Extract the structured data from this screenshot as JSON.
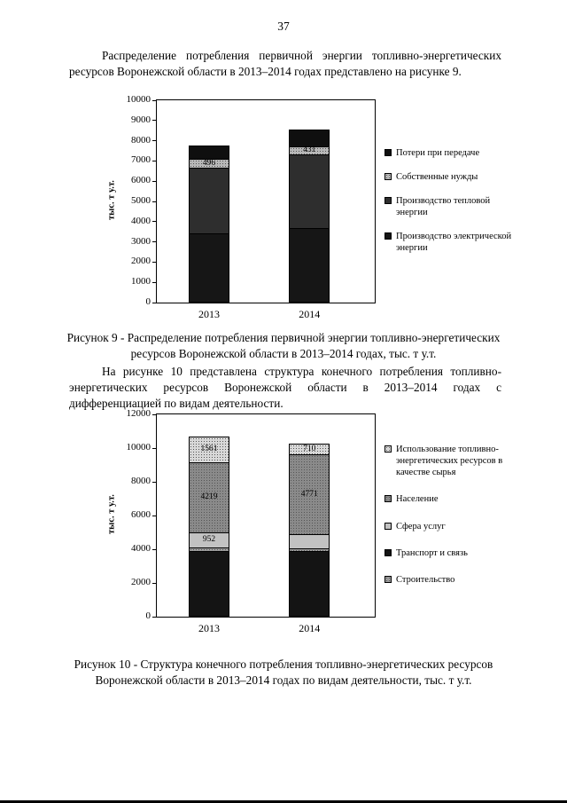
{
  "page": {
    "number": "37",
    "paragraph1": "Распределение потребления первичной энергии топливно-энергетических ресурсов Воронежской области в 2013–2014 годах представлено на рисунке 9.",
    "caption_fig9": "Рисунок 9 - Распределение потребления первичной энергии топливно-энергетических ресурсов Воронежской области в 2013–2014 годах, тыс. т у.т.",
    "paragraph2": "На рисунке 10 представлена структура конечного потребления топливно-энергетических ресурсов Воронежской области в 2013–2014 годах с дифференциацией по видам деятельности.",
    "caption_fig10": "Рисунок 10 - Структура конечного потребления топливно-энергетических ресурсов Воронежской области в 2013–2014 годах по видам деятельности, тыс. т у.т."
  },
  "chart_data": [
    {
      "type": "bar",
      "subtype": "stacked",
      "title": "",
      "ylabel": "тыс. т у.т.",
      "ylim": [
        0,
        10000
      ],
      "ytick_step": 1000,
      "grid": false,
      "legend_position": "right",
      "categories": [
        "2013",
        "2014"
      ],
      "series": [
        {
          "name": "Производство электрической энергии",
          "color": "#161616",
          "values": [
            3400,
            3700
          ]
        },
        {
          "name": "Производство тепловой энергии",
          "color": "#2e2e2e",
          "values": [
            3304,
            3669
          ]
        },
        {
          "name": "Собственные нужды",
          "color": "#b8b8b8",
          "pattern": "speckle",
          "values": [
            496,
            431
          ],
          "labels": [
            "496",
            "431"
          ]
        },
        {
          "name": "Потери при передаче",
          "color": "#0f0f0f",
          "values": [
            700,
            900
          ]
        }
      ],
      "totals": [
        7900,
        8700
      ],
      "legend": [
        {
          "label": "Потери при передаче",
          "color": "#0f0f0f"
        },
        {
          "label": "Собственные нужды",
          "color": "#b8b8b8",
          "pattern": "speckle"
        },
        {
          "label": "Производство тепловой энергии",
          "color": "#2e2e2e"
        },
        {
          "label": "Производство электрической энергии",
          "color": "#161616"
        }
      ]
    },
    {
      "type": "bar",
      "subtype": "stacked",
      "title": "",
      "ylabel": "тыс. т у.т.",
      "ylim": [
        0,
        12000
      ],
      "ytick_step": 2000,
      "grid": false,
      "legend_position": "right",
      "categories": [
        "2013",
        "2014"
      ],
      "series": [
        {
          "name": "Транспорт и связь",
          "color": "#141414",
          "values": [
            3900,
            3870
          ]
        },
        {
          "name": "Строительство",
          "color": "#9c9c9c",
          "pattern": "speckle",
          "values": [
            250,
            250
          ]
        },
        {
          "name": "Сфера услуг",
          "color": "#c2c2c2",
          "values": [
            952,
            900
          ],
          "labels": [
            "952",
            null
          ]
        },
        {
          "name": "Население",
          "color": "#8a8a8a",
          "pattern": "speckle",
          "values": [
            4219,
            4771
          ],
          "labels": [
            "4219",
            "4771"
          ]
        },
        {
          "name": "Использование топливно-энергетических ресурсов в качестве сырья",
          "color": "#d8d8d8",
          "pattern": "speckle",
          "values": [
            1561,
            710
          ],
          "labels": [
            "1561",
            "710"
          ]
        }
      ],
      "totals": [
        10882,
        10501
      ],
      "legend": [
        {
          "label": "Использование топливно-энергетических ресурсов в качестве сырья",
          "color": "#d8d8d8",
          "pattern": "speckle"
        },
        {
          "label": "Население",
          "color": "#8a8a8a",
          "pattern": "speckle"
        },
        {
          "label": "Сфера услуг",
          "color": "#c2c2c2"
        },
        {
          "label": "Транспорт и связь",
          "color": "#141414"
        },
        {
          "label": "Строительство",
          "color": "#9c9c9c",
          "pattern": "speckle"
        }
      ]
    }
  ]
}
